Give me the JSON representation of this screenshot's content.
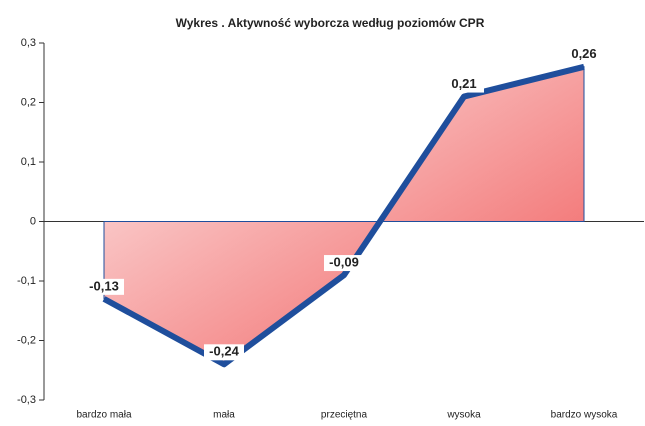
{
  "chart_data": {
    "type": "area",
    "title": "Wykres . Aktywność wyborcza według poziomów CPR",
    "categories": [
      "bardzo mała",
      "mała",
      "przeciętna",
      "wysoka",
      "bardzo wysoka"
    ],
    "values": [
      -0.13,
      -0.24,
      -0.09,
      0.21,
      0.26
    ],
    "value_labels": [
      "-0,13",
      "-0,24",
      "-0,09",
      "0,21",
      "0,26"
    ],
    "color": "#1f4e9c",
    "ylim": [
      -0.3,
      0.3
    ],
    "yticks": [
      {
        "value": -0.3,
        "label": "-0,3"
      },
      {
        "value": -0.2,
        "label": "-0,2"
      },
      {
        "value": -0.1,
        "label": "-0,1"
      },
      0,
      {
        "value": 0.1,
        "label": "0,1"
      },
      {
        "value": 0.2,
        "label": "0,2"
      },
      {
        "value": 0.3,
        "label": "0,3"
      }
    ]
  }
}
